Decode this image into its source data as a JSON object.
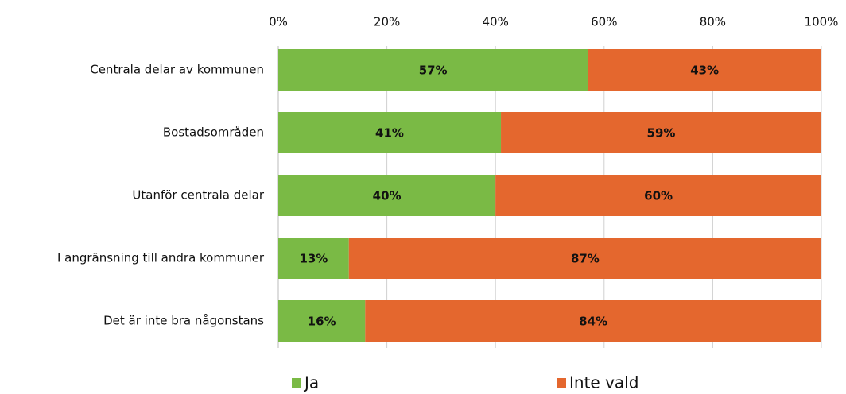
{
  "chart_data": {
    "type": "bar",
    "orientation": "horizontal",
    "stacked": true,
    "categories": [
      "Centrala delar av kommunen",
      "Bostadsområden",
      "Utanför centrala delar",
      "I angränsning till andra kommuner",
      "Det är inte bra någonstans"
    ],
    "series": [
      {
        "name": "Ja",
        "color": "#7aba45",
        "values": [
          57,
          41,
          40,
          13,
          16
        ],
        "value_labels": [
          "57%",
          "41%",
          "40%",
          "13%",
          "16%"
        ]
      },
      {
        "name": "Inte vald",
        "color": "#e4672e",
        "values": [
          43,
          59,
          60,
          87,
          84
        ],
        "value_labels": [
          "43%",
          "59%",
          "60%",
          "87%",
          "84%"
        ]
      }
    ],
    "xlim": [
      0,
      100
    ],
    "xticks": [
      {
        "value": 0,
        "label": "0%"
      },
      {
        "value": 20,
        "label": "20%"
      },
      {
        "value": 40,
        "label": "40%"
      },
      {
        "value": 60,
        "label": "60%"
      },
      {
        "value": 80,
        "label": "80%"
      },
      {
        "value": 100,
        "label": "100%"
      }
    ],
    "grid": true,
    "legend": "bottom"
  }
}
